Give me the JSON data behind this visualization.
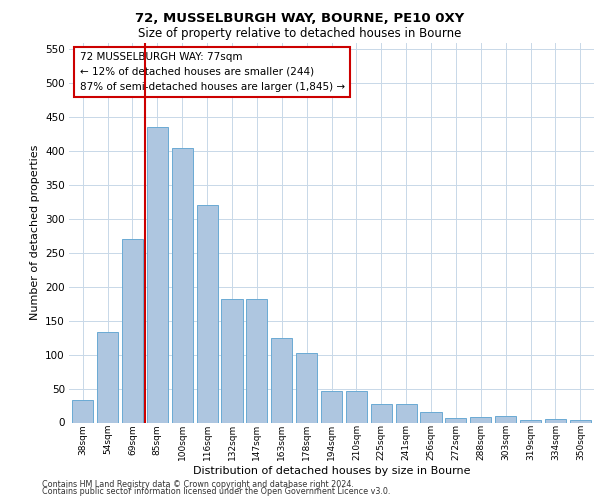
{
  "title1": "72, MUSSELBURGH WAY, BOURNE, PE10 0XY",
  "title2": "Size of property relative to detached houses in Bourne",
  "xlabel": "Distribution of detached houses by size in Bourne",
  "ylabel": "Number of detached properties",
  "categories": [
    "38sqm",
    "54sqm",
    "69sqm",
    "85sqm",
    "100sqm",
    "116sqm",
    "132sqm",
    "147sqm",
    "163sqm",
    "178sqm",
    "194sqm",
    "210sqm",
    "225sqm",
    "241sqm",
    "256sqm",
    "272sqm",
    "288sqm",
    "303sqm",
    "319sqm",
    "334sqm",
    "350sqm"
  ],
  "values": [
    33,
    133,
    270,
    435,
    405,
    320,
    182,
    182,
    125,
    103,
    46,
    46,
    28,
    28,
    15,
    6,
    8,
    10,
    4,
    5,
    4
  ],
  "bar_color": "#aec6e0",
  "bar_edge_color": "#6aaad4",
  "vline_x": 2.5,
  "vline_color": "#cc0000",
  "annotation_text": "72 MUSSELBURGH WAY: 77sqm\n← 12% of detached houses are smaller (244)\n87% of semi-detached houses are larger (1,845) →",
  "annotation_box_color": "#ffffff",
  "annotation_box_edge": "#cc0000",
  "ylim": [
    0,
    560
  ],
  "yticks": [
    0,
    50,
    100,
    150,
    200,
    250,
    300,
    350,
    400,
    450,
    500,
    550
  ],
  "footer1": "Contains HM Land Registry data © Crown copyright and database right 2024.",
  "footer2": "Contains public sector information licensed under the Open Government Licence v3.0.",
  "bg_color": "#ffffff",
  "grid_color": "#c8d8e8"
}
